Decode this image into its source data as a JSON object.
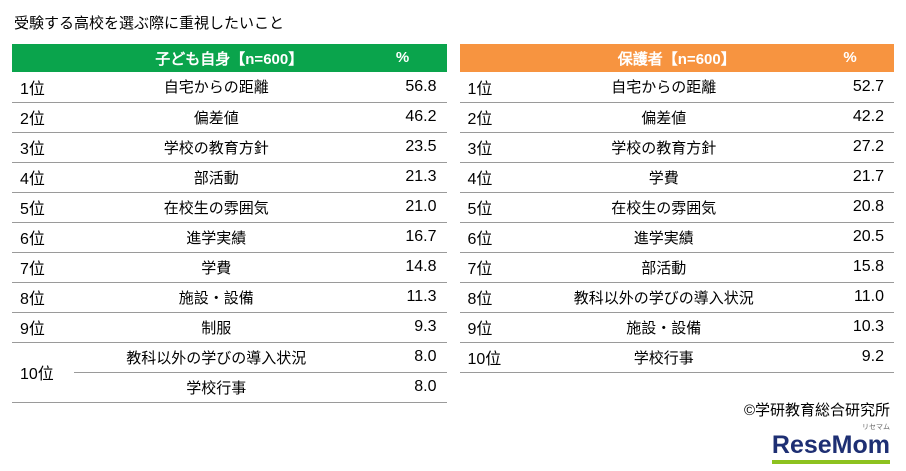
{
  "title": "受験する高校を選ぶ際に重視したいこと",
  "colors": {
    "children_header": "#0aa44c",
    "parents_header": "#f79440",
    "logo_navy": "#1e2f73",
    "logo_green": "#8dc21f"
  },
  "left": {
    "header": "子ども自身【n=600】",
    "percent_label": "%",
    "rows": [
      {
        "rank": "1位",
        "item": "自宅からの距離",
        "value": "56.8"
      },
      {
        "rank": "2位",
        "item": "偏差値",
        "value": "46.2"
      },
      {
        "rank": "3位",
        "item": "学校の教育方針",
        "value": "23.5"
      },
      {
        "rank": "4位",
        "item": "部活動",
        "value": "21.3"
      },
      {
        "rank": "5位",
        "item": "在校生の雰囲気",
        "value": "21.0"
      },
      {
        "rank": "6位",
        "item": "進学実績",
        "value": "16.7"
      },
      {
        "rank": "7位",
        "item": "学費",
        "value": "14.8"
      },
      {
        "rank": "8位",
        "item": "施設・設備",
        "value": "11.3"
      },
      {
        "rank": "9位",
        "item": "制服",
        "value": "9.3"
      },
      {
        "rank": "10位",
        "item": "教科以外の学びの導入状況",
        "value": "8.0"
      },
      {
        "rank": "",
        "item": "学校行事",
        "value": "8.0"
      }
    ]
  },
  "right": {
    "header": "保護者【n=600】",
    "percent_label": "%",
    "rows": [
      {
        "rank": "1位",
        "item": "自宅からの距離",
        "value": "52.7"
      },
      {
        "rank": "2位",
        "item": "偏差値",
        "value": "42.2"
      },
      {
        "rank": "3位",
        "item": "学校の教育方針",
        "value": "27.2"
      },
      {
        "rank": "4位",
        "item": "学費",
        "value": "21.7"
      },
      {
        "rank": "5位",
        "item": "在校生の雰囲気",
        "value": "20.8"
      },
      {
        "rank": "6位",
        "item": "進学実績",
        "value": "20.5"
      },
      {
        "rank": "7位",
        "item": "部活動",
        "value": "15.8"
      },
      {
        "rank": "8位",
        "item": "教科以外の学びの導入状況",
        "value": "11.0"
      },
      {
        "rank": "9位",
        "item": "施設・設備",
        "value": "10.3"
      },
      {
        "rank": "10位",
        "item": "学校行事",
        "value": "9.2"
      }
    ]
  },
  "footer": {
    "copyright": "©学研教育総合研究所",
    "logo_text": "ReseMom",
    "logo_furigana": "リセマム"
  },
  "chart_data": [
    {
      "type": "table",
      "title": "受験する高校を選ぶ際に重視したいこと",
      "group": "子ども自身",
      "n": 600,
      "unit": "%",
      "ranks": [
        "1位",
        "2位",
        "3位",
        "4位",
        "5位",
        "6位",
        "7位",
        "8位",
        "9位",
        "10位",
        "10位"
      ],
      "categories": [
        "自宅からの距離",
        "偏差値",
        "学校の教育方針",
        "部活動",
        "在校生の雰囲気",
        "進学実績",
        "学費",
        "施設・設備",
        "制服",
        "教科以外の学びの導入状況",
        "学校行事"
      ],
      "values": [
        56.8,
        46.2,
        23.5,
        21.3,
        21.0,
        16.7,
        14.8,
        11.3,
        9.3,
        8.0,
        8.0
      ]
    },
    {
      "type": "table",
      "title": "受験する高校を選ぶ際に重視したいこと",
      "group": "保護者",
      "n": 600,
      "unit": "%",
      "ranks": [
        "1位",
        "2位",
        "3位",
        "4位",
        "5位",
        "6位",
        "7位",
        "8位",
        "9位",
        "10位"
      ],
      "categories": [
        "自宅からの距離",
        "偏差値",
        "学校の教育方針",
        "学費",
        "在校生の雰囲気",
        "進学実績",
        "部活動",
        "教科以外の学びの導入状況",
        "施設・設備",
        "学校行事"
      ],
      "values": [
        52.7,
        42.2,
        27.2,
        21.7,
        20.8,
        20.5,
        15.8,
        11.0,
        10.3,
        9.2
      ]
    }
  ]
}
